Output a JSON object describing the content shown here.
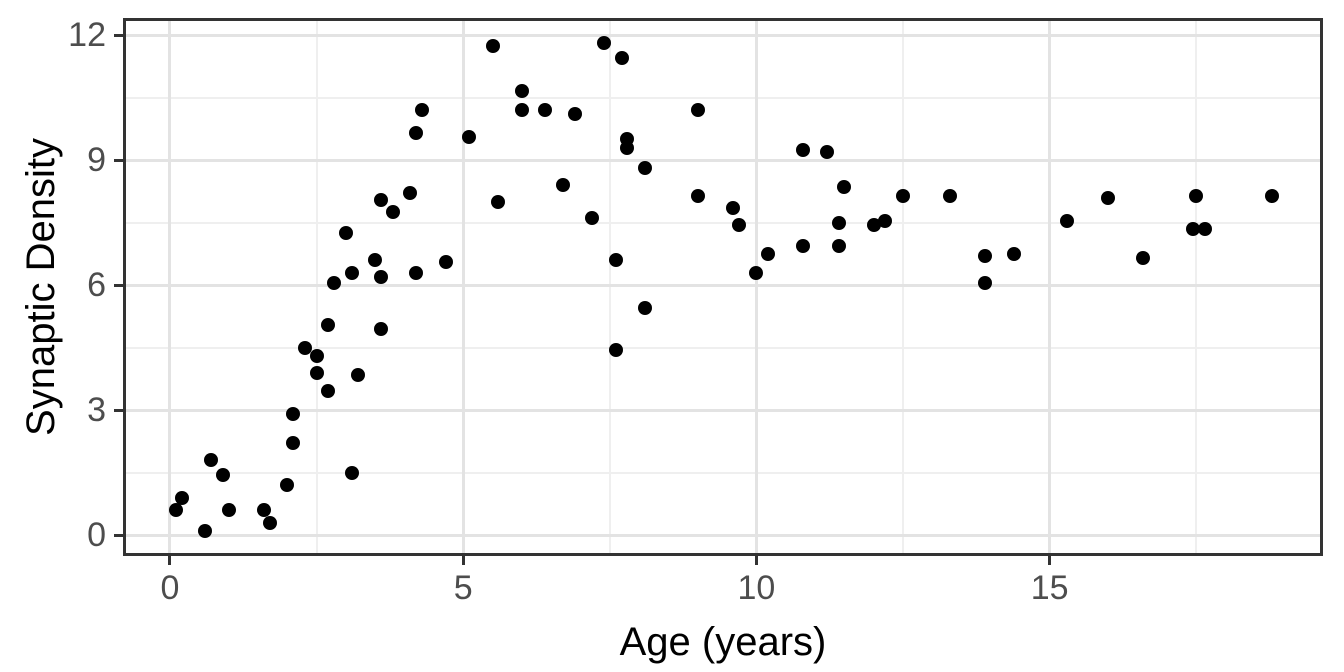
{
  "chart_data": {
    "type": "scatter",
    "title": "",
    "xlabel": "Age (years)",
    "ylabel": "Synaptic Density",
    "x_ticks": [
      0,
      5,
      10,
      15
    ],
    "x_tick_labels": [
      "0",
      "5",
      "10",
      "15"
    ],
    "y_ticks": [
      0,
      3,
      6,
      9,
      12
    ],
    "y_tick_labels": [
      "0",
      "3",
      "6",
      "9",
      "12"
    ],
    "x_minor_ticks": [
      2.5,
      7.5,
      12.5,
      17.5
    ],
    "y_minor_ticks": [
      1.5,
      4.5,
      7.5,
      10.5
    ],
    "xlim": [
      -0.75,
      19.61
    ],
    "ylim": [
      -0.43,
      12.34
    ],
    "grid": "on",
    "legend": "none",
    "points": [
      [
        0.1,
        0.6
      ],
      [
        0.2,
        0.9
      ],
      [
        0.6,
        0.1
      ],
      [
        0.7,
        1.8
      ],
      [
        0.9,
        1.45
      ],
      [
        1.0,
        0.6
      ],
      [
        1.6,
        0.6
      ],
      [
        1.7,
        0.3
      ],
      [
        2.0,
        1.2
      ],
      [
        2.1,
        2.2
      ],
      [
        2.1,
        2.9
      ],
      [
        2.3,
        4.5
      ],
      [
        2.5,
        4.3
      ],
      [
        2.5,
        3.9
      ],
      [
        2.7,
        5.05
      ],
      [
        2.7,
        3.45
      ],
      [
        2.8,
        6.05
      ],
      [
        3.0,
        7.25
      ],
      [
        3.1,
        6.3
      ],
      [
        3.1,
        1.5
      ],
      [
        3.2,
        3.85
      ],
      [
        3.5,
        6.6
      ],
      [
        3.6,
        6.2
      ],
      [
        3.6,
        8.05
      ],
      [
        3.6,
        4.95
      ],
      [
        3.8,
        7.75
      ],
      [
        4.1,
        8.2
      ],
      [
        4.2,
        9.65
      ],
      [
        4.2,
        6.3
      ],
      [
        4.3,
        10.2
      ],
      [
        4.7,
        6.55
      ],
      [
        5.1,
        9.55
      ],
      [
        5.5,
        11.75
      ],
      [
        5.6,
        8.0
      ],
      [
        6.0,
        10.65
      ],
      [
        6.0,
        10.2
      ],
      [
        6.4,
        10.2
      ],
      [
        6.7,
        8.4
      ],
      [
        6.9,
        10.1
      ],
      [
        7.2,
        7.6
      ],
      [
        7.4,
        11.8
      ],
      [
        7.6,
        6.6
      ],
      [
        7.6,
        4.45
      ],
      [
        7.7,
        11.45
      ],
      [
        7.8,
        9.5
      ],
      [
        7.8,
        9.3
      ],
      [
        8.1,
        8.8
      ],
      [
        8.1,
        5.45
      ],
      [
        9.0,
        10.2
      ],
      [
        9.0,
        8.15
      ],
      [
        9.6,
        7.85
      ],
      [
        9.7,
        7.45
      ],
      [
        10.0,
        6.3
      ],
      [
        10.2,
        6.75
      ],
      [
        10.8,
        9.25
      ],
      [
        10.8,
        6.95
      ],
      [
        11.2,
        9.2
      ],
      [
        11.5,
        8.35
      ],
      [
        11.4,
        7.5
      ],
      [
        11.4,
        6.95
      ],
      [
        12.0,
        7.45
      ],
      [
        12.2,
        7.55
      ],
      [
        12.5,
        8.15
      ],
      [
        13.3,
        8.15
      ],
      [
        13.9,
        6.7
      ],
      [
        13.9,
        6.05
      ],
      [
        14.4,
        6.75
      ],
      [
        15.3,
        7.55
      ],
      [
        16.0,
        8.1
      ],
      [
        16.6,
        6.65
      ],
      [
        17.5,
        8.15
      ],
      [
        17.45,
        7.35
      ],
      [
        17.65,
        7.35
      ],
      [
        18.8,
        8.15
      ]
    ],
    "colors": {
      "point": "#000000",
      "panel_border": "#333333",
      "grid_major": "#e3e3e3",
      "grid_minor": "#efefef",
      "tick_label": "#4d4d4d",
      "axis_title": "#000000",
      "background": "#ffffff"
    }
  }
}
